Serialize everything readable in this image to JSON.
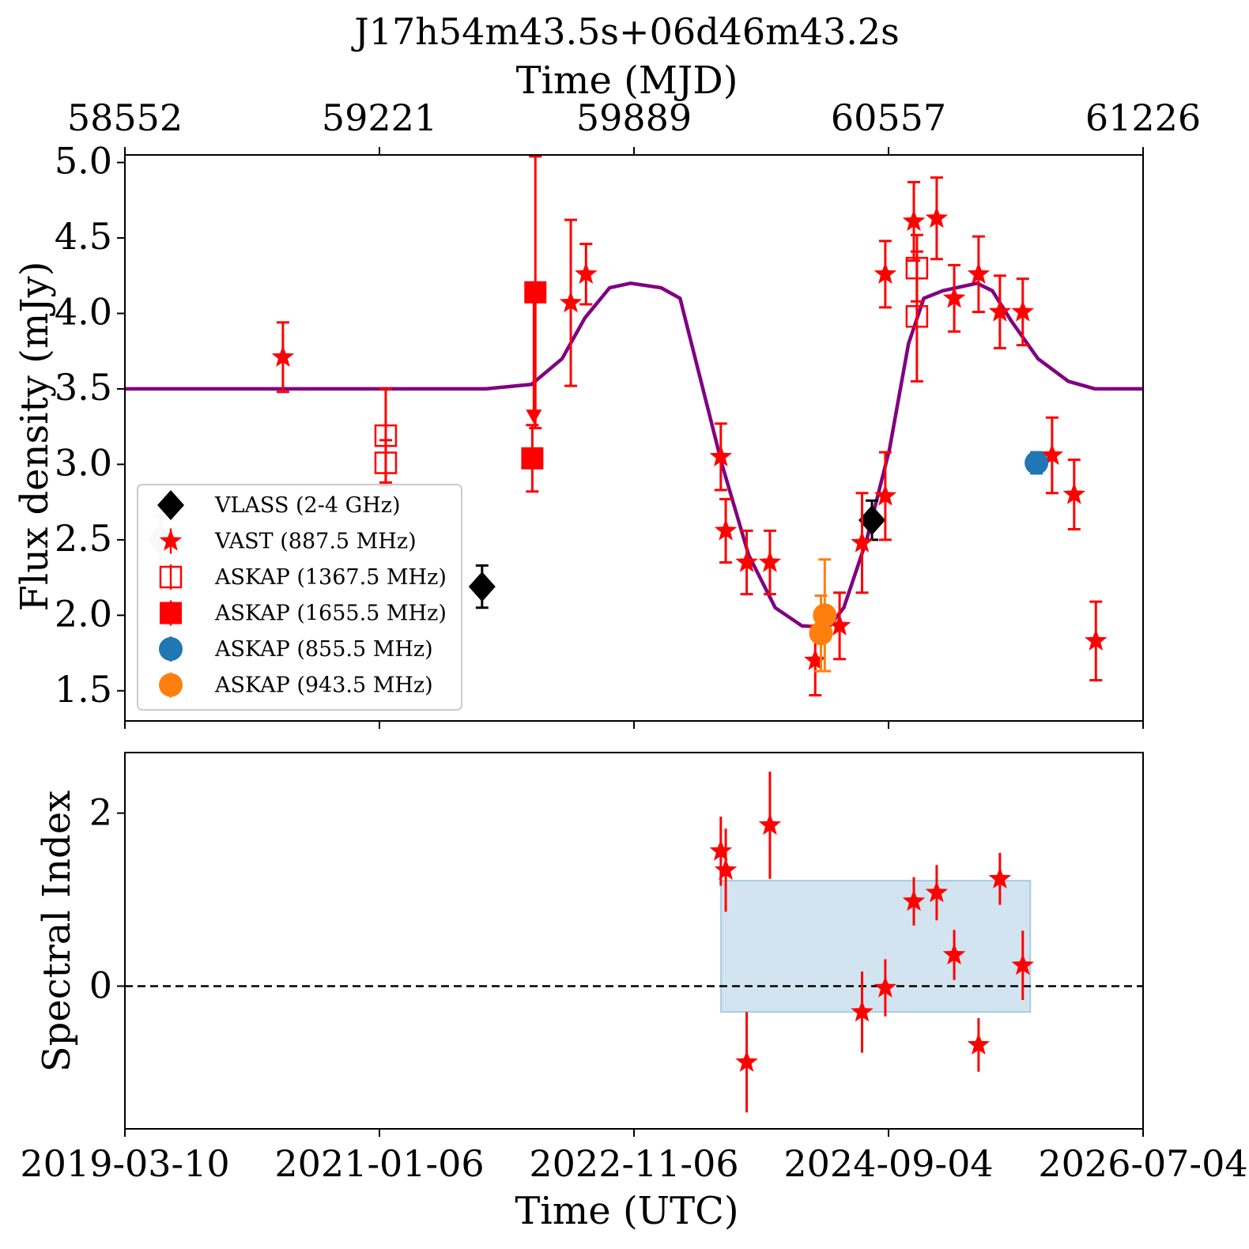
{
  "chart_data": [
    {
      "type": "scatter",
      "panel": "flux",
      "title": "J17h54m43.5s+06d46m43.2s",
      "xlabel_top": "Time (MJD)",
      "xticks_top": [
        "58552",
        "59221",
        "59889",
        "60557",
        "61226"
      ],
      "ylabel": "Flux density (mJy)",
      "yticks": [
        "1.5",
        "2.0",
        "2.5",
        "3.0",
        "3.5",
        "4.0",
        "4.5",
        "5.0"
      ],
      "ylim": [
        1.3,
        5.05
      ],
      "xlim_mjd": [
        58552,
        61226
      ],
      "legend_position": "lower-left",
      "series": [
        {
          "name": "VLASS (2-4 GHz)",
          "marker": "diamond-filled",
          "color": "#000000",
          "points": [
            {
              "mjd": 59490,
              "y": 2.19,
              "err": 0.14
            },
            {
              "mjd": 60514,
              "y": 2.63,
              "err": 0.13
            }
          ]
        },
        {
          "name": "VAST (887.5 MHz)",
          "marker": "star",
          "color": "#ff0000",
          "points": [
            {
              "mjd": 58967,
              "y": 3.71,
              "err": 0.23
            },
            {
              "mjd": 59626,
              "y": 3.3,
              "err": 0,
              "upper_limit": true
            },
            {
              "mjd": 59723,
              "y": 4.07,
              "err": 0.55
            },
            {
              "mjd": 59763,
              "y": 4.26,
              "err": 0.2
            },
            {
              "mjd": 60117,
              "y": 3.05,
              "err": 0.22
            },
            {
              "mjd": 60130,
              "y": 2.56,
              "err": 0.21
            },
            {
              "mjd": 60185,
              "y": 2.35,
              "err": 0.21
            },
            {
              "mjd": 60246,
              "y": 2.35,
              "err": 0.21
            },
            {
              "mjd": 60365,
              "y": 1.7,
              "err": 0.23
            },
            {
              "mjd": 60429,
              "y": 1.93,
              "err": 0.22
            },
            {
              "mjd": 60488,
              "y": 2.48,
              "err": 0.33
            },
            {
              "mjd": 60549,
              "y": 2.79,
              "err": 0.29
            },
            {
              "mjd": 60549,
              "y": 4.26,
              "err": 0.22
            },
            {
              "mjd": 60624,
              "y": 4.61,
              "err": 0.26
            },
            {
              "mjd": 60684,
              "y": 4.63,
              "err": 0.27
            },
            {
              "mjd": 60730,
              "y": 4.1,
              "err": 0.22
            },
            {
              "mjd": 60794,
              "y": 4.26,
              "err": 0.25
            },
            {
              "mjd": 60850,
              "y": 4.01,
              "err": 0.24
            },
            {
              "mjd": 60910,
              "y": 4.01,
              "err": 0.22
            },
            {
              "mjd": 60987,
              "y": 3.06,
              "err": 0.25
            },
            {
              "mjd": 61045,
              "y": 2.8,
              "err": 0.23
            },
            {
              "mjd": 61102,
              "y": 1.83,
              "err": 0.26
            }
          ]
        },
        {
          "name": "ASKAP (1367.5 MHz)",
          "marker": "square-open",
          "color": "#ff0000",
          "points": [
            {
              "mjd": 59237,
              "y": 3.19,
              "err": 0.31
            },
            {
              "mjd": 59237,
              "y": 3.01,
              "err": 0.15
            },
            {
              "mjd": 60632,
              "y": 4.3,
              "err": 0.22
            },
            {
              "mjd": 60632,
              "y": 3.98,
              "err": 0.43
            }
          ]
        },
        {
          "name": "ASKAP (1655.5 MHz)",
          "marker": "square-filled",
          "color": "#ff0000",
          "points": [
            {
              "mjd": 59630,
              "y": 4.14,
              "err": 0.9
            },
            {
              "mjd": 59622,
              "y": 3.04,
              "err": 0.22
            }
          ]
        },
        {
          "name": "ASKAP (855.5 MHz)",
          "marker": "circle-filled",
          "color": "#1f77b4",
          "points": [
            {
              "mjd": 60946,
              "y": 3.01,
              "err": 0.07
            }
          ]
        },
        {
          "name": "ASKAP (943.5 MHz)",
          "marker": "circle-filled",
          "color": "#ff7f0e",
          "points": [
            {
              "mjd": 60380,
              "y": 1.88,
              "err": 0.25
            },
            {
              "mjd": 60390,
              "y": 2.0,
              "err": 0.37
            }
          ]
        },
        {
          "name": "",
          "marker": "diamond-filled",
          "color": "#cccccc",
          "points": [
            {
              "mjd": 58645,
              "y": 2.5,
              "err": 0.16
            }
          ]
        }
      ],
      "model_curve": {
        "color": "#800080",
        "points": [
          [
            58552,
            3.5
          ],
          [
            59500,
            3.5
          ],
          [
            59620,
            3.53
          ],
          [
            59700,
            3.7
          ],
          [
            59760,
            3.97
          ],
          [
            59825,
            4.17
          ],
          [
            59880,
            4.2
          ],
          [
            59960,
            4.17
          ],
          [
            60010,
            4.1
          ],
          [
            60060,
            3.6
          ],
          [
            60120,
            3.0
          ],
          [
            60190,
            2.4
          ],
          [
            60260,
            2.05
          ],
          [
            60330,
            1.93
          ],
          [
            60400,
            1.92
          ],
          [
            60440,
            2.05
          ],
          [
            60500,
            2.5
          ],
          [
            60560,
            3.1
          ],
          [
            60610,
            3.8
          ],
          [
            60650,
            4.1
          ],
          [
            60700,
            4.15
          ],
          [
            60790,
            4.2
          ],
          [
            60830,
            4.15
          ],
          [
            60880,
            3.95
          ],
          [
            60950,
            3.7
          ],
          [
            61030,
            3.55
          ],
          [
            61100,
            3.5
          ],
          [
            61226,
            3.5
          ]
        ]
      }
    },
    {
      "type": "scatter",
      "panel": "spectral-index",
      "xlabel": "Time (UTC)",
      "xticks_bottom": [
        "2019-03-10",
        "2021-01-06",
        "2022-11-06",
        "2024-09-04",
        "2026-07-04"
      ],
      "ylabel": "Spectral Index",
      "yticks": [
        "0",
        "2"
      ],
      "ylim": [
        -1.65,
        2.7
      ],
      "xlim_mjd": [
        58552,
        61226
      ],
      "reference_line_y": 0,
      "shaded_band": {
        "x_from_mjd": 60117,
        "x_to_mjd": 60930,
        "y_from": -0.3,
        "y_to": 1.22,
        "color": "#1f77b4"
      },
      "series": [
        {
          "name": "VAST (887.5 MHz)",
          "marker": "star",
          "color": "#ff0000",
          "points": [
            {
              "mjd": 60117,
              "y": 1.56,
              "err": 0.4
            },
            {
              "mjd": 60130,
              "y": 1.34,
              "err": 0.48
            },
            {
              "mjd": 60185,
              "y": -0.88,
              "err": 0.58
            },
            {
              "mjd": 60246,
              "y": 1.86,
              "err": 0.62
            },
            {
              "mjd": 60488,
              "y": -0.3,
              "err": 0.47
            },
            {
              "mjd": 60549,
              "y": -0.02,
              "err": 0.33
            },
            {
              "mjd": 60624,
              "y": 0.98,
              "err": 0.28
            },
            {
              "mjd": 60684,
              "y": 1.08,
              "err": 0.32
            },
            {
              "mjd": 60730,
              "y": 0.36,
              "err": 0.29
            },
            {
              "mjd": 60794,
              "y": -0.68,
              "err": 0.31
            },
            {
              "mjd": 60850,
              "y": 1.24,
              "err": 0.3
            },
            {
              "mjd": 60910,
              "y": 0.24,
              "err": 0.4
            }
          ]
        }
      ]
    }
  ]
}
